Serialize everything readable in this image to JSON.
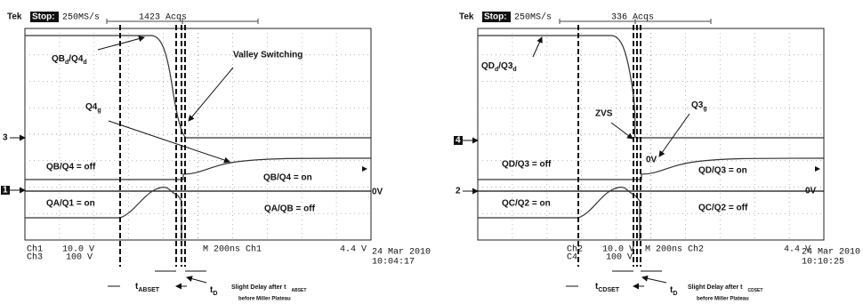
{
  "panels": [
    {
      "tek": "Tek",
      "state": "Stop:",
      "rate": "250MS/s",
      "acqs": "1423 Acqs",
      "drain_label": [
        "QB",
        "d",
        "/Q4",
        "d"
      ],
      "callout": "Valley Switching",
      "gate_label": [
        "Q4",
        "g"
      ],
      "marker_upper": "3",
      "marker_lower": "1",
      "upper_off": "QB/Q4 = off",
      "upper_on": "QB/Q4 = on",
      "zero_v": "0V",
      "lower_on": "QA/Q1 = on",
      "lower_off": "QA/QB = off",
      "readout_a": "Ch1",
      "readout_a_scale": "10.0 V",
      "readout_b": "Ch3",
      "readout_b_scale": "100 V",
      "timebase": "M 200ns Ch1",
      "trigger_level": "4.4 V",
      "date": "24 Mar 2010",
      "time": "10:04:17",
      "dead_time": [
        "t",
        "ABSET"
      ],
      "delay": [
        "t",
        "D"
      ],
      "note": "Slight Delay after t",
      "note_sub": "ABSET",
      "note_line2": "before Miller Plateau"
    },
    {
      "tek": "Tek",
      "state": "Stop:",
      "rate": "250MS/s",
      "acqs": "336 Acqs",
      "drain_label": [
        "QD",
        "d",
        "/Q3",
        "d"
      ],
      "callout": "ZVS",
      "gate_label": [
        "Q3",
        "g"
      ],
      "marker_upper": "4",
      "marker_lower": "2",
      "upper_off": "QD/Q3 = off",
      "upper_on": "QD/Q3 = on",
      "mid_zero_v": "0V",
      "zero_v": "0V",
      "lower_on": "QC/Q2 = on",
      "lower_off": "QC/Q2 = off",
      "readout_a": "Ch2",
      "readout_a_scale": "10.0 V",
      "readout_b": "C4",
      "readout_b_scale": "100 V",
      "timebase": "M 200ns Ch2",
      "trigger_level": "4.4 V",
      "date": "24 Mar 2010",
      "time": "10:10:25",
      "dead_time": [
        "t",
        "CDSET"
      ],
      "delay": [
        "t",
        "D"
      ],
      "note": "Slight Delay after t",
      "note_sub": "CDSET",
      "note_line2": "before Miller Plateau"
    }
  ]
}
